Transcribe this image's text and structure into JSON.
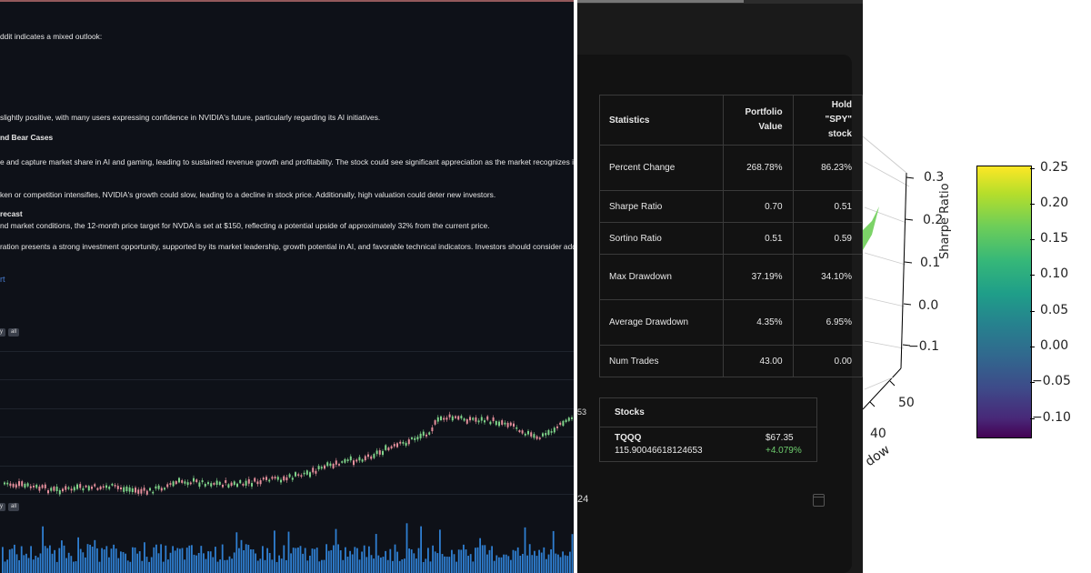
{
  "report": {
    "lines": [
      {
        "text": "ddit indicates a mixed outlook:",
        "bold": false
      },
      {
        "text": "slightly positive, with many users expressing confidence in NVIDIA's future, particularly regarding its AI initiatives.",
        "bold": false
      },
      {
        "text": "nd Bear Cases",
        "bold": true
      },
      {
        "text": "e and capture market share in AI and gaming, leading to sustained revenue growth and profitability. The stock could see significant appreciation as the market recognizes its potenti",
        "bold": false
      },
      {
        "text": "ken or competition intensifies, NVIDIA's growth could slow, leading to a decline in stock price. Additionally, high valuation could deter new investors.",
        "bold": false
      },
      {
        "text": "recast",
        "bold": true
      },
      {
        "text": "nd market conditions, the 12-month price target for NVDA is set at $150, reflecting a potential upside of approximately 32% from the current price.",
        "bold": false
      },
      {
        "text": "ration presents a strong investment opportunity, supported by its market leadership, growth potential in AI, and favorable technical indicators. Investors should consider adding NV",
        "bold": false
      }
    ],
    "link": "rt",
    "range_buttons": [
      "y",
      "all"
    ]
  },
  "stats_table": {
    "headers": [
      "Statistics",
      "Portfolio Value",
      "Hold \"SPY\" stock"
    ],
    "rows": [
      {
        "label": "Percent Change",
        "portfolio": "268.78%",
        "hold": "86.23%"
      },
      {
        "label": "Sharpe Ratio",
        "portfolio": "0.70",
        "hold": "0.51"
      },
      {
        "label": "Sortino Ratio",
        "portfolio": "0.51",
        "hold": "0.59"
      },
      {
        "label": "Max Drawdown",
        "portfolio": "37.19%",
        "hold": "34.10%"
      },
      {
        "label": "Average Drawdown",
        "portfolio": "4.35%",
        "hold": "6.95%"
      },
      {
        "label": "Num Trades",
        "portfolio": "43.00",
        "hold": "0.00"
      }
    ]
  },
  "stocks": {
    "title": "Stocks",
    "ticker": "TQQQ",
    "quantity": "115.90046618124653",
    "price": "$67.35",
    "change": "+4.079%"
  },
  "edge_text": {
    "top": "53",
    "bottom": "24"
  },
  "plot3d": {
    "z_ticks": [
      "0.3",
      "0.2",
      "0.1",
      "0.0",
      "−0.1"
    ],
    "z_label": "Sharpe Ratio",
    "y_ticks": [
      "50",
      "40"
    ],
    "y_label_fragment": "dow",
    "colorbar": {
      "colormap": "viridis",
      "ticks": [
        "0.25",
        "0.20",
        "0.15",
        "0.10",
        "0.05",
        "0.00",
        "−0.05",
        "−0.10"
      ]
    }
  }
}
